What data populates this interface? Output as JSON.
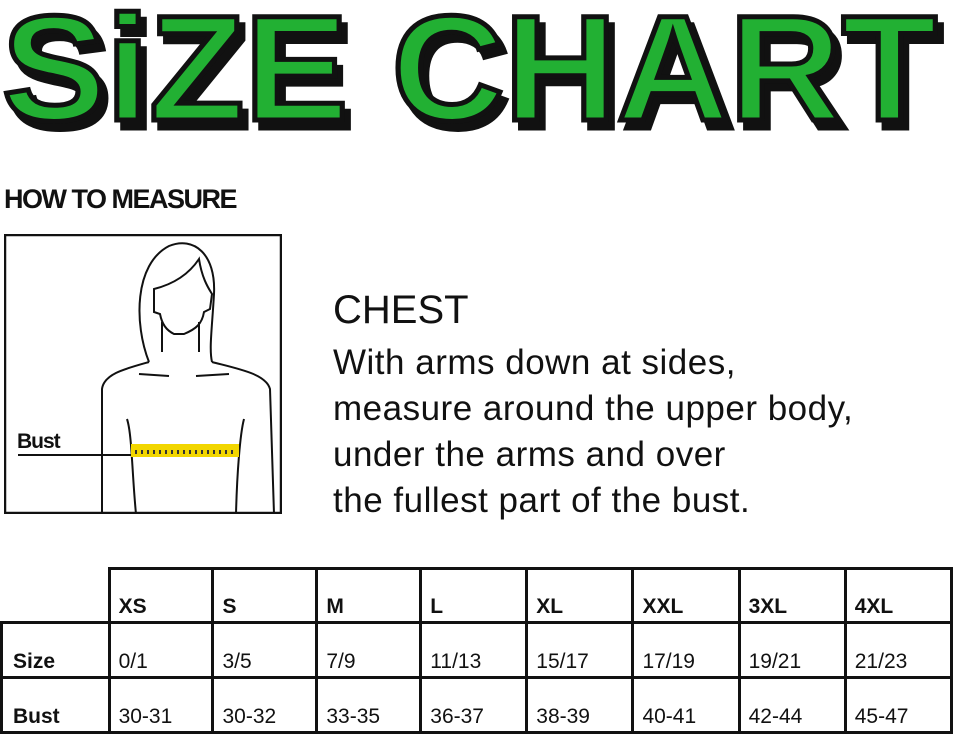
{
  "title": "SiZE CHART",
  "title_color": "#22b033",
  "how_to_measure": "HOW TO MEASURE",
  "figure": {
    "label": "Bust",
    "tape_color": "#f2d600"
  },
  "chest": {
    "heading": "CHEST",
    "lines": [
      "With arms down at sides,",
      "measure around the upper body,",
      "under the arms and over",
      "the fullest part of the bust."
    ]
  },
  "table": {
    "sizes": [
      "XS",
      "S",
      "M",
      "L",
      "XL",
      "XXL",
      "3XL",
      "4XL"
    ],
    "rows": [
      {
        "label": "Size",
        "values": [
          "0/1",
          "3/5",
          "7/9",
          "11/13",
          "15/17",
          "17/19",
          "19/21",
          "21/23"
        ]
      },
      {
        "label": "Bust",
        "values": [
          "30-31",
          "30-32",
          "33-35",
          "36-37",
          "38-39",
          "40-41",
          "42-44",
          "45-47"
        ]
      }
    ]
  }
}
